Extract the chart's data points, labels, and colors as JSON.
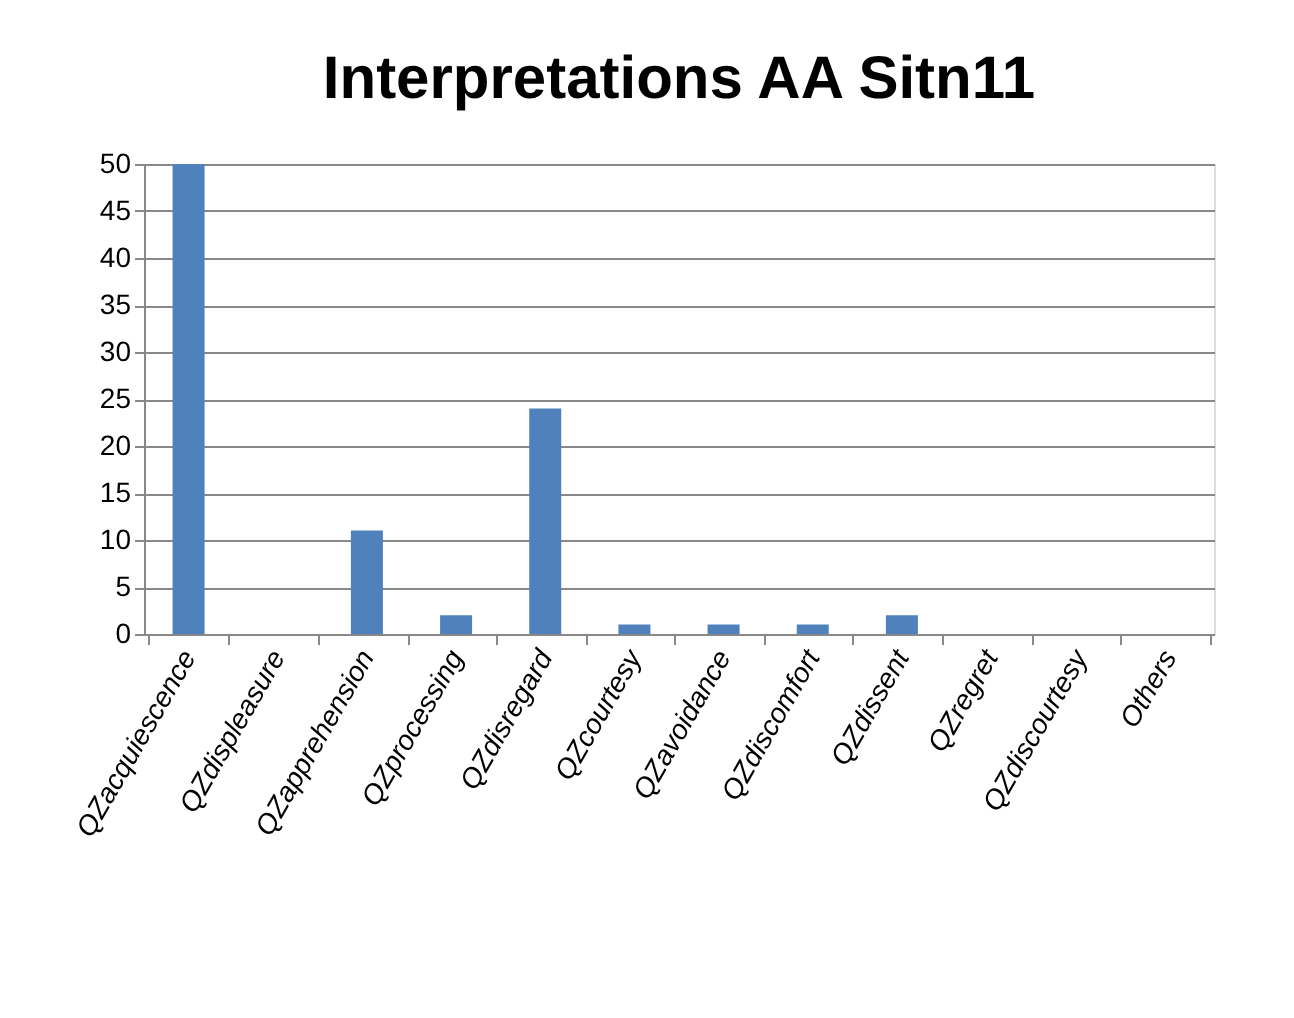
{
  "chart_data": {
    "type": "bar",
    "title": "Interpretations AA Sitn11",
    "categories": [
      "QZacquiescence",
      "QZdispleasure",
      "QZapprehension",
      "QZprocessing",
      "QZdisregard",
      "QZcourtesy",
      "QZavoidance",
      "QZdiscomfort",
      "QZdissent",
      "QZregret",
      "QZdiscourtesy",
      "Others"
    ],
    "values": [
      50,
      0,
      11,
      2,
      24,
      1,
      1,
      1,
      2,
      0,
      0,
      0
    ],
    "color": "#4f81bd",
    "ylim": [
      0,
      50
    ],
    "yticks": [
      0,
      5,
      10,
      15,
      20,
      25,
      30,
      35,
      40,
      45,
      50
    ],
    "grid": "y"
  }
}
